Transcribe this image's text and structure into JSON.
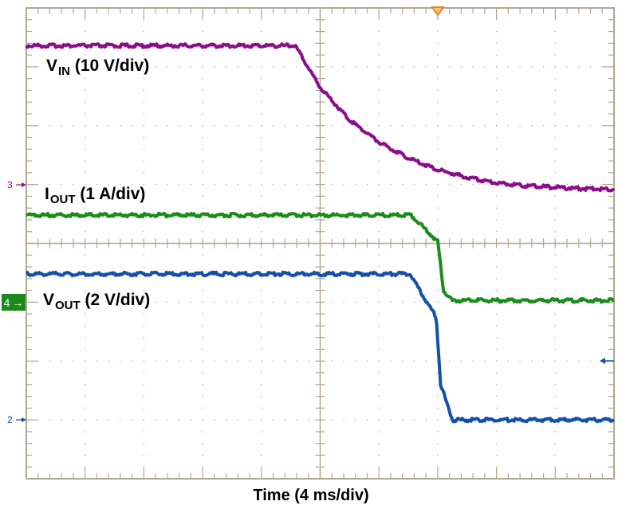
{
  "chart_data": {
    "type": "line",
    "title": "",
    "xlabel": "Time (4 ms/div)",
    "ylabel": "",
    "grid": true,
    "x_unit": "ms",
    "x_divisions": 10,
    "y_divisions": 8,
    "xlim": [
      0,
      40
    ],
    "ylim_div": [
      0,
      8
    ],
    "trigger_position_ms": 28,
    "series": [
      {
        "name": "VIN",
        "label": "V_IN (10 V/div)",
        "channel": 3,
        "scale": "10 V/div",
        "color": "#8b0d8b",
        "x_ms": [
          0,
          18.3,
          20.0,
          22.0,
          24.0,
          26.0,
          28.0,
          30.0,
          32.0,
          34.0,
          36.0,
          38.0,
          40.0
        ],
        "y_div_from_bottom": [
          7.36,
          7.36,
          6.65,
          6.1,
          5.72,
          5.45,
          5.25,
          5.12,
          5.03,
          4.98,
          4.95,
          4.93,
          4.92
        ]
      },
      {
        "name": "IOUT",
        "label": "I_OUT (1 A/div)",
        "channel": 4,
        "scale": "1 A/div",
        "color": "#1a8c1a",
        "x_ms": [
          0,
          26.2,
          28.0,
          28.4,
          29.0,
          40.0
        ],
        "y_div_from_bottom": [
          4.48,
          4.48,
          4.03,
          3.2,
          3.03,
          3.03
        ]
      },
      {
        "name": "VOUT",
        "label": "V_OUT (2 V/div)",
        "channel": 2,
        "scale": "2 V/div",
        "color": "#1450a8",
        "x_ms": [
          0,
          26.1,
          27.9,
          28.2,
          29.0,
          40.0
        ],
        "y_div_from_bottom": [
          3.48,
          3.48,
          2.74,
          1.6,
          1.0,
          1.0
        ]
      }
    ],
    "annotations": [
      {
        "text": "V_IN (10 V/div)",
        "position": "upper-left"
      },
      {
        "text": "I_OUT (1 A/div)",
        "position": "left, above IOUT trace"
      },
      {
        "text": "V_OUT (2 V/div)",
        "position": "left, below VOUT trace"
      }
    ]
  },
  "labels": {
    "vin_main": "V",
    "vin_sub": "IN",
    "vin_scale": "(10 V/div)",
    "iout_main": "I",
    "iout_sub": "OUT",
    "iout_scale": "(1 A/div)",
    "vout_main": "V",
    "vout_sub": "OUT",
    "vout_scale": "(2 V/div)",
    "time_axis": "Time (4 ms/div)"
  },
  "markers": {
    "ch3": "3",
    "ch4": "4",
    "ch2": "2",
    "arrow_glyph": "→"
  },
  "colors": {
    "grid": "#b0a890",
    "vin": "#8b0d8b",
    "iout": "#1a8c1a",
    "vout": "#1450a8",
    "trigger": "#e08a20"
  }
}
